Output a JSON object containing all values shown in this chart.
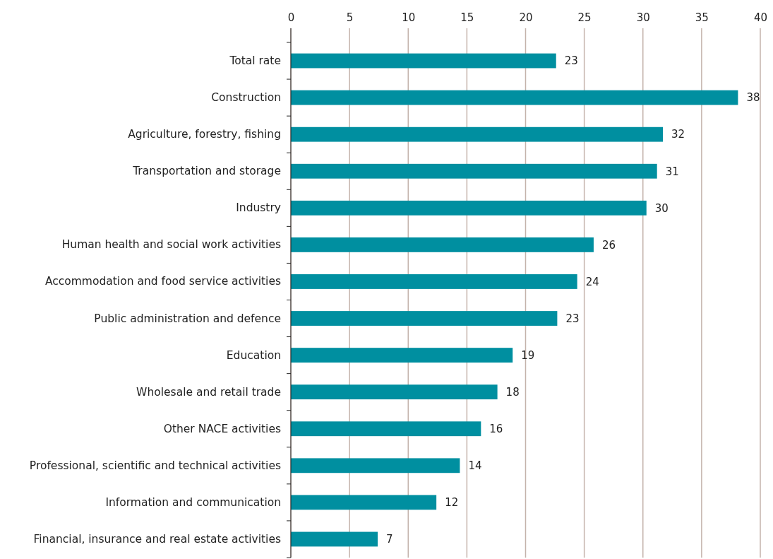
{
  "chart_data": {
    "type": "bar",
    "orientation": "horizontal",
    "categories": [
      "Total rate",
      "Construction",
      "Agriculture, forestry, fishing",
      "Transportation and storage",
      "Industry",
      "Human health and social work activities",
      "Accommodation and food service activities",
      "Public administration and defence",
      "Education",
      "Wholesale and retail trade",
      "Other NACE activities",
      "Professional, scientific and technical activities",
      "Information and communication",
      "Financial, insurance and real estate activities"
    ],
    "values": [
      22.6,
      38.1,
      31.7,
      31.2,
      30.3,
      25.8,
      24.4,
      22.7,
      18.9,
      17.6,
      16.2,
      14.4,
      12.4,
      7.4
    ],
    "value_labels": [
      "23",
      "38",
      "32",
      "31",
      "30",
      "26",
      "24",
      "23",
      "19",
      "18",
      "16",
      "14",
      "12",
      "7"
    ],
    "color": "#008fa0",
    "xlim": [
      0,
      40
    ],
    "xticks": [
      0,
      5,
      10,
      15,
      20,
      25,
      30,
      35,
      40
    ],
    "grid": "x"
  }
}
